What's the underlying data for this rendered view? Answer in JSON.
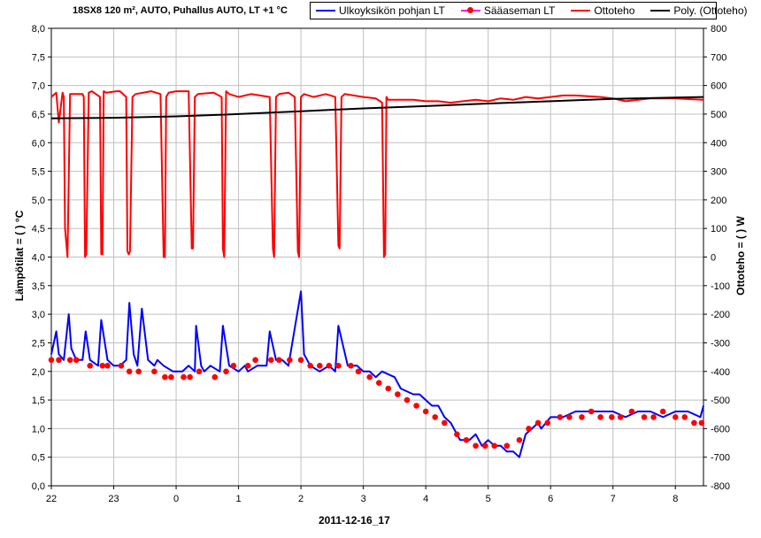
{
  "title": "18SX8 120 m², AUTO, Puhallus AUTO, LT +1 °C",
  "legend": {
    "ulkoyksikko": "Ulkoyksikön pohjan LT",
    "saaasema": "Sääaseman LT",
    "ottoteho": "Ottoteho",
    "poly": "Poly. (Ottoteho)"
  },
  "colors": {
    "ulkoyksikko": "#0000ff",
    "saaasema": "#ff0000",
    "saaasema_line": "#ff00ff",
    "ottoteho": "#ff0000",
    "poly": "#000000",
    "grid": "#c0c0c0"
  },
  "chart_data": {
    "type": "line",
    "xlabel": "2011-12-16_17",
    "ylabel_left": "Lämpötilat = ( ) °C",
    "ylabel_right": "Ottoteho = ( ) W",
    "x_tick_labels": [
      "22",
      "23",
      "0",
      "1",
      "2",
      "3",
      "4",
      "5",
      "6",
      "7",
      "8"
    ],
    "x_range_hours": [
      22,
      32.45
    ],
    "y_left_range": [
      0.0,
      8.0
    ],
    "y_left_ticks": [
      "0,0",
      "0,5",
      "1,0",
      "1,5",
      "2,0",
      "2,5",
      "3,0",
      "3,5",
      "4,0",
      "4,5",
      "5,0",
      "5,5",
      "6,0",
      "6,5",
      "7,0",
      "7,5",
      "8,0"
    ],
    "y_right_range": [
      -800,
      800
    ],
    "y_right_ticks": [
      "-800",
      "-700",
      "-600",
      "-500",
      "-400",
      "-300",
      "-200",
      "-100",
      "0",
      "100",
      "200",
      "300",
      "400",
      "500",
      "600",
      "700",
      "800"
    ],
    "grid": true,
    "legend_position": "top",
    "series": [
      {
        "name": "Ulkoyksikön pohjan LT",
        "axis": "left",
        "x": [
          22.0,
          22.08,
          22.12,
          22.2,
          22.28,
          22.32,
          22.4,
          22.5,
          22.55,
          22.62,
          22.75,
          22.8,
          22.9,
          23.0,
          23.1,
          23.2,
          23.25,
          23.32,
          23.38,
          23.45,
          23.55,
          23.65,
          23.7,
          23.8,
          23.95,
          24.1,
          24.2,
          24.3,
          24.32,
          24.4,
          24.45,
          24.55,
          24.7,
          24.75,
          24.85,
          25.0,
          25.1,
          25.15,
          25.3,
          25.45,
          25.5,
          25.6,
          25.7,
          25.8,
          26.0,
          26.05,
          26.15,
          26.3,
          26.45,
          26.55,
          26.6,
          26.75,
          26.9,
          27.0,
          27.1,
          27.2,
          27.3,
          27.5,
          27.6,
          27.8,
          27.9,
          28.0,
          28.1,
          28.2,
          28.3,
          28.4,
          28.5,
          28.55,
          28.7,
          28.8,
          28.9,
          29.0,
          29.1,
          29.2,
          29.3,
          29.4,
          29.5,
          29.6,
          29.7,
          29.8,
          29.85,
          30.0,
          30.2,
          30.4,
          30.6,
          30.8,
          31.0,
          31.2,
          31.4,
          31.6,
          31.8,
          32.0,
          32.2,
          32.4,
          32.45
        ],
        "y": [
          2.3,
          2.7,
          2.3,
          2.2,
          3.0,
          2.4,
          2.2,
          2.2,
          2.7,
          2.2,
          2.1,
          2.9,
          2.2,
          2.1,
          2.1,
          2.2,
          3.2,
          2.3,
          2.1,
          3.1,
          2.2,
          2.1,
          2.2,
          2.1,
          2.0,
          2.0,
          2.1,
          2.0,
          2.8,
          2.1,
          2.0,
          2.1,
          2.0,
          2.8,
          2.1,
          2.0,
          2.1,
          2.0,
          2.1,
          2.1,
          2.7,
          2.2,
          2.2,
          2.1,
          3.4,
          2.3,
          2.1,
          2.0,
          2.1,
          2.0,
          2.8,
          2.1,
          2.1,
          2.0,
          2.0,
          1.9,
          2.0,
          1.9,
          1.7,
          1.6,
          1.6,
          1.5,
          1.4,
          1.4,
          1.2,
          1.1,
          0.9,
          0.8,
          0.8,
          0.9,
          0.7,
          0.8,
          0.7,
          0.7,
          0.6,
          0.6,
          0.5,
          0.9,
          1.0,
          1.1,
          1.0,
          1.2,
          1.2,
          1.3,
          1.3,
          1.3,
          1.3,
          1.2,
          1.3,
          1.3,
          1.2,
          1.3,
          1.3,
          1.2,
          1.4
        ]
      },
      {
        "name": "Sääaseman LT",
        "axis": "left",
        "x": [
          22.0,
          22.12,
          22.3,
          22.4,
          22.62,
          22.82,
          22.9,
          23.12,
          23.25,
          23.4,
          23.65,
          23.82,
          23.92,
          24.12,
          24.22,
          24.37,
          24.62,
          24.8,
          24.92,
          25.15,
          25.27,
          25.52,
          25.65,
          25.82,
          26.0,
          26.15,
          26.3,
          26.45,
          26.6,
          26.8,
          26.92,
          27.1,
          27.25,
          27.4,
          27.55,
          27.7,
          27.85,
          28.0,
          28.15,
          28.3,
          28.5,
          28.65,
          28.8,
          28.95,
          29.1,
          29.3,
          29.5,
          29.65,
          29.8,
          29.95,
          30.15,
          30.3,
          30.5,
          30.65,
          30.8,
          30.98,
          31.12,
          31.3,
          31.5,
          31.65,
          31.8,
          32.0,
          32.15,
          32.3,
          32.42
        ],
        "y": [
          2.2,
          2.2,
          2.2,
          2.2,
          2.1,
          2.1,
          2.1,
          2.1,
          2.0,
          2.0,
          2.0,
          1.9,
          1.9,
          1.9,
          1.9,
          2.0,
          1.9,
          2.0,
          2.1,
          2.1,
          2.2,
          2.2,
          2.2,
          2.2,
          2.2,
          2.1,
          2.1,
          2.1,
          2.1,
          2.1,
          2.0,
          1.9,
          1.8,
          1.7,
          1.6,
          1.5,
          1.4,
          1.3,
          1.2,
          1.1,
          0.9,
          0.8,
          0.7,
          0.7,
          0.7,
          0.7,
          0.8,
          1.0,
          1.1,
          1.1,
          1.2,
          1.2,
          1.2,
          1.3,
          1.2,
          1.2,
          1.2,
          1.3,
          1.2,
          1.2,
          1.3,
          1.2,
          1.2,
          1.1,
          1.1
        ]
      },
      {
        "name": "Ottoteho",
        "axis": "right",
        "x": [
          22.0,
          22.08,
          22.12,
          22.18,
          22.2,
          22.22,
          22.26,
          22.3,
          22.5,
          22.52,
          22.54,
          22.56,
          22.6,
          22.65,
          22.78,
          22.8,
          22.82,
          22.84,
          22.88,
          23.05,
          23.1,
          23.2,
          23.22,
          23.24,
          23.26,
          23.3,
          23.35,
          23.6,
          23.75,
          23.8,
          23.82,
          23.84,
          23.88,
          24.0,
          24.2,
          24.25,
          24.27,
          24.3,
          24.35,
          24.6,
          24.73,
          24.75,
          24.77,
          24.8,
          24.85,
          25.0,
          25.2,
          25.5,
          25.55,
          25.57,
          25.6,
          25.65,
          25.8,
          25.9,
          25.95,
          25.97,
          26.0,
          26.05,
          26.2,
          26.4,
          26.55,
          26.6,
          26.62,
          26.65,
          26.7,
          27.0,
          27.2,
          27.3,
          27.33,
          27.35,
          27.37,
          27.4,
          27.45,
          27.8,
          28.0,
          28.2,
          28.4,
          28.6,
          28.8,
          29.0,
          29.2,
          29.4,
          29.6,
          29.8,
          30.0,
          30.2,
          30.4,
          30.8,
          31.0,
          31.2,
          31.6,
          32.0,
          32.45
        ],
        "y": [
          560,
          575,
          470,
          575,
          560,
          100,
          0,
          570,
          570,
          560,
          0,
          10,
          575,
          580,
          560,
          10,
          10,
          580,
          575,
          580,
          580,
          560,
          20,
          10,
          20,
          560,
          570,
          580,
          570,
          0,
          0,
          560,
          575,
          580,
          580,
          30,
          30,
          560,
          570,
          575,
          560,
          30,
          0,
          580,
          570,
          560,
          570,
          560,
          30,
          0,
          560,
          570,
          575,
          560,
          20,
          0,
          560,
          570,
          560,
          570,
          560,
          40,
          30,
          560,
          570,
          560,
          555,
          540,
          0,
          10,
          560,
          550,
          550,
          550,
          545,
          545,
          540,
          545,
          550,
          545,
          555,
          550,
          560,
          555,
          560,
          565,
          565,
          560,
          555,
          545,
          555,
          555,
          550
        ]
      },
      {
        "name": "Poly. (Ottoteho)",
        "axis": "right",
        "x": [
          22.0,
          23.0,
          24.0,
          25.0,
          26.0,
          27.0,
          28.0,
          29.0,
          30.0,
          31.0,
          32.0,
          32.45
        ],
        "y": [
          485,
          487,
          492,
          500,
          510,
          520,
          528,
          537,
          545,
          553,
          558,
          560
        ]
      }
    ]
  }
}
